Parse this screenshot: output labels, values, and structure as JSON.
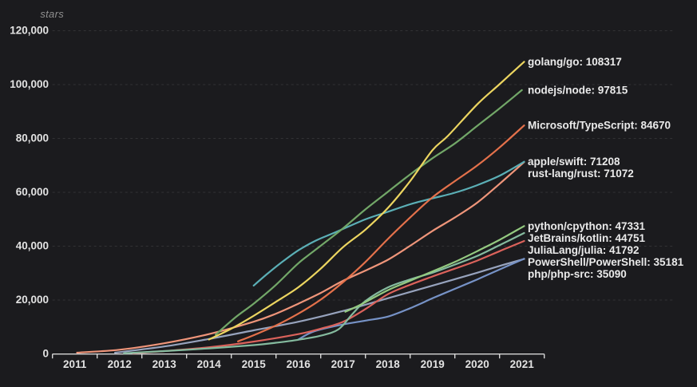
{
  "chart_data": {
    "type": "line",
    "ylabel": "stars",
    "x_axis": {
      "tick_labels": [
        "2011",
        "2012",
        "2013",
        "2014",
        "2015",
        "2016",
        "2017",
        "2018",
        "2019",
        "2020",
        "2021"
      ],
      "range": [
        2010.5,
        2021.5
      ]
    },
    "y_axis": {
      "tick_labels": [
        "0",
        "20,000",
        "40,000",
        "60,000",
        "80,000",
        "100,000",
        "120,000"
      ],
      "tick_values": [
        0,
        20000,
        40000,
        60000,
        80000,
        100000,
        120000
      ],
      "range": [
        0,
        120000
      ],
      "grid": "horizontal dashed"
    },
    "legend_position": "right-end-labels",
    "series": [
      {
        "name": "golang/go",
        "label": "golang/go: 108317",
        "final_value": 108317,
        "color": "#ecd560",
        "points": [
          [
            2014.0,
            5200
          ],
          [
            2014.5,
            9200
          ],
          [
            2015,
            14000
          ],
          [
            2015.5,
            19200
          ],
          [
            2016,
            24600
          ],
          [
            2016.5,
            31500
          ],
          [
            2017,
            39500
          ],
          [
            2017.5,
            46000
          ],
          [
            2018,
            54000
          ],
          [
            2018.5,
            64000
          ],
          [
            2019,
            75500
          ],
          [
            2019.35,
            80900
          ],
          [
            2020,
            92500
          ],
          [
            2020.5,
            100000
          ],
          [
            2021.05,
            108317
          ]
        ]
      },
      {
        "name": "nodejs/node",
        "label": "nodejs/node: 97815",
        "final_value": 97815,
        "color": "#72a768",
        "points": [
          [
            2014.15,
            7000
          ],
          [
            2014.6,
            13500
          ],
          [
            2015,
            18500
          ],
          [
            2015.5,
            25500
          ],
          [
            2016,
            33500
          ],
          [
            2016.5,
            40000
          ],
          [
            2017,
            46500
          ],
          [
            2017.5,
            53500
          ],
          [
            2018,
            60000
          ],
          [
            2018.5,
            66500
          ],
          [
            2019,
            72500
          ],
          [
            2019.5,
            78000
          ],
          [
            2020,
            84500
          ],
          [
            2020.5,
            91000
          ],
          [
            2021.0,
            97815
          ]
        ]
      },
      {
        "name": "Microsoft/TypeScript",
        "label": "Microsoft/TypeScript: 84670",
        "final_value": 84670,
        "color": "#e4714b",
        "points": [
          [
            2014.65,
            4500
          ],
          [
            2015,
            6800
          ],
          [
            2015.5,
            10400
          ],
          [
            2016,
            14800
          ],
          [
            2016.5,
            20000
          ],
          [
            2017,
            26500
          ],
          [
            2017.5,
            34000
          ],
          [
            2018,
            42500
          ],
          [
            2018.5,
            50500
          ],
          [
            2019,
            58000
          ],
          [
            2019.5,
            64000
          ],
          [
            2020,
            69800
          ],
          [
            2020.5,
            76500
          ],
          [
            2021.05,
            84670
          ]
        ]
      },
      {
        "name": "apple/swift",
        "label": "apple/swift: 71208",
        "final_value": 71208,
        "color": "#5bafb6",
        "points": [
          [
            2015.0,
            25200
          ],
          [
            2015.3,
            29500
          ],
          [
            2015.6,
            33500
          ],
          [
            2016,
            38300
          ],
          [
            2016.4,
            42000
          ],
          [
            2016.8,
            44800
          ],
          [
            2017.5,
            49800
          ],
          [
            2018,
            52600
          ],
          [
            2018.5,
            55400
          ],
          [
            2019,
            57600
          ],
          [
            2019.5,
            59700
          ],
          [
            2020,
            62500
          ],
          [
            2020.5,
            66000
          ],
          [
            2021.05,
            71208
          ]
        ]
      },
      {
        "name": "rust-lang/rust",
        "label": "rust-lang/rust: 71072",
        "final_value": 71072,
        "color": "#ef957a",
        "points": [
          [
            2011.05,
            300
          ],
          [
            2012,
            1400
          ],
          [
            2013,
            3800
          ],
          [
            2014,
            7200
          ],
          [
            2015,
            11800
          ],
          [
            2015.5,
            14800
          ],
          [
            2016,
            18500
          ],
          [
            2016.5,
            22500
          ],
          [
            2017,
            27000
          ],
          [
            2017.5,
            30800
          ],
          [
            2018,
            34800
          ],
          [
            2018.5,
            40000
          ],
          [
            2019,
            45500
          ],
          [
            2019.5,
            50500
          ],
          [
            2020,
            56000
          ],
          [
            2020.5,
            63000
          ],
          [
            2021.05,
            71072
          ]
        ]
      },
      {
        "name": "python/cpython",
        "label": "python/cpython: 47331",
        "final_value": 47331,
        "color": "#94ca80",
        "points": [
          [
            2017.05,
            15500
          ],
          [
            2017.4,
            18200
          ],
          [
            2018,
            23500
          ],
          [
            2018.5,
            27000
          ],
          [
            2019,
            30500
          ],
          [
            2019.5,
            34000
          ],
          [
            2020,
            38000
          ],
          [
            2020.5,
            42200
          ],
          [
            2021.05,
            47331
          ]
        ]
      },
      {
        "name": "JetBrains/kotlin",
        "label": "JetBrains/kotlin: 44751",
        "final_value": 44751,
        "color": "#85bb9f",
        "points": [
          [
            2012.1,
            100
          ],
          [
            2013,
            900
          ],
          [
            2014,
            1900
          ],
          [
            2015,
            3100
          ],
          [
            2015.5,
            4000
          ],
          [
            2016,
            5100
          ],
          [
            2016.5,
            6600
          ],
          [
            2016.9,
            9000
          ],
          [
            2017.2,
            14500
          ],
          [
            2017.5,
            19500
          ],
          [
            2018,
            24500
          ],
          [
            2018.5,
            27500
          ],
          [
            2019,
            30000
          ],
          [
            2019.5,
            33000
          ],
          [
            2020,
            36200
          ],
          [
            2020.5,
            40200
          ],
          [
            2021.05,
            44751
          ]
        ]
      },
      {
        "name": "JuliaLang/julia",
        "label": "JuliaLang/julia: 41792",
        "final_value": 41792,
        "color": "#db625b",
        "points": [
          [
            2012.3,
            150
          ],
          [
            2013,
            900
          ],
          [
            2014,
            2300
          ],
          [
            2015,
            4400
          ],
          [
            2016,
            7200
          ],
          [
            2016.5,
            9200
          ],
          [
            2017,
            11800
          ],
          [
            2017.5,
            16500
          ],
          [
            2018,
            22000
          ],
          [
            2018.5,
            25500
          ],
          [
            2019,
            28600
          ],
          [
            2019.5,
            31500
          ],
          [
            2020,
            34500
          ],
          [
            2020.5,
            38000
          ],
          [
            2021.05,
            41792
          ]
        ]
      },
      {
        "name": "PowerShell/PowerShell",
        "label": "PowerShell/PowerShell: 35181",
        "final_value": 35181,
        "color": "#7692c6",
        "points": [
          [
            2016.0,
            5200
          ],
          [
            2016.35,
            8200
          ],
          [
            2017,
            10800
          ],
          [
            2017.5,
            12200
          ],
          [
            2018,
            13700
          ],
          [
            2018.5,
            16800
          ],
          [
            2019,
            20500
          ],
          [
            2019.5,
            24000
          ],
          [
            2020,
            27500
          ],
          [
            2020.5,
            31200
          ],
          [
            2021.05,
            35181
          ]
        ]
      },
      {
        "name": "php/php-src",
        "label": "php/php-src: 35090",
        "final_value": 35090,
        "color": "#97a3bd",
        "points": [
          [
            2011.9,
            300
          ],
          [
            2013,
            2600
          ],
          [
            2014,
            5400
          ],
          [
            2015,
            8600
          ],
          [
            2016,
            11800
          ],
          [
            2017,
            15800
          ],
          [
            2018,
            20500
          ],
          [
            2019,
            25200
          ],
          [
            2020,
            30000
          ],
          [
            2020.5,
            32500
          ],
          [
            2021.05,
            35090
          ]
        ]
      }
    ]
  }
}
